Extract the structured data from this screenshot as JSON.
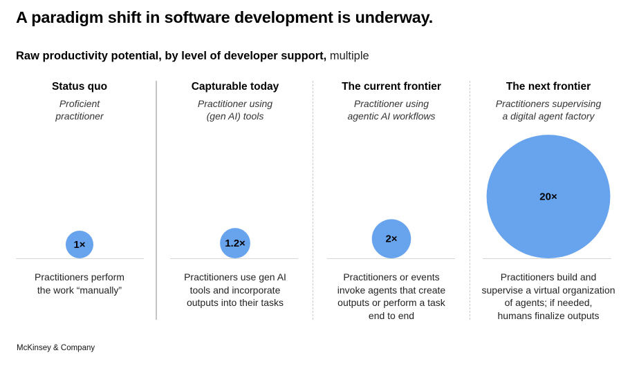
{
  "title": "A paradigm shift in software development is underway.",
  "subtitle": {
    "bold": "Raw productivity potential, by level of developer support,",
    "unit": "multiple"
  },
  "footer": "McKinsey & Company",
  "colors": {
    "bubble": "#68A3EE",
    "baseline": "#d6d6d6",
    "separator": "#c4c4c4"
  },
  "columns": [
    {
      "title": "Status quo",
      "subtitle_lines": [
        "Proficient",
        "practitioner"
      ],
      "value_label": "1×",
      "description_lines": [
        "Practitioners perform",
        "the work “manually”"
      ]
    },
    {
      "title": "Capturable today",
      "subtitle_lines": [
        "Practitioner using",
        "(gen AI) tools"
      ],
      "value_label": "1.2×",
      "description_lines": [
        "Practitioners use gen AI",
        "tools and incorporate",
        "outputs into their tasks"
      ]
    },
    {
      "title": "The current frontier",
      "subtitle_lines": [
        "Practitioner using",
        "agentic AI workflows"
      ],
      "value_label": "2×",
      "description_lines": [
        "Practitioners or events",
        "invoke agents that create",
        "outputs or perform a task",
        "end to end"
      ]
    },
    {
      "title": "The next frontier",
      "subtitle_lines": [
        "Practitioners supervising",
        "a digital agent factory"
      ],
      "value_label": "20×",
      "description_lines": [
        "Practitioners build and",
        "supervise a virtual organization",
        "of agents; if needed,",
        "humans finalize outputs"
      ]
    }
  ],
  "chart_data": {
    "type": "bubble",
    "title": "A paradigm shift in software development is underway.",
    "subtitle": "Raw productivity potential, by level of developer support, multiple",
    "categories": [
      "Status quo",
      "Capturable today",
      "The current frontier",
      "The next frontier"
    ],
    "values": [
      1,
      1.2,
      2,
      20
    ],
    "labels": [
      "1×",
      "1.2×",
      "2×",
      "20×"
    ],
    "size_encoding": "area",
    "xlabel": "",
    "ylabel": ""
  }
}
